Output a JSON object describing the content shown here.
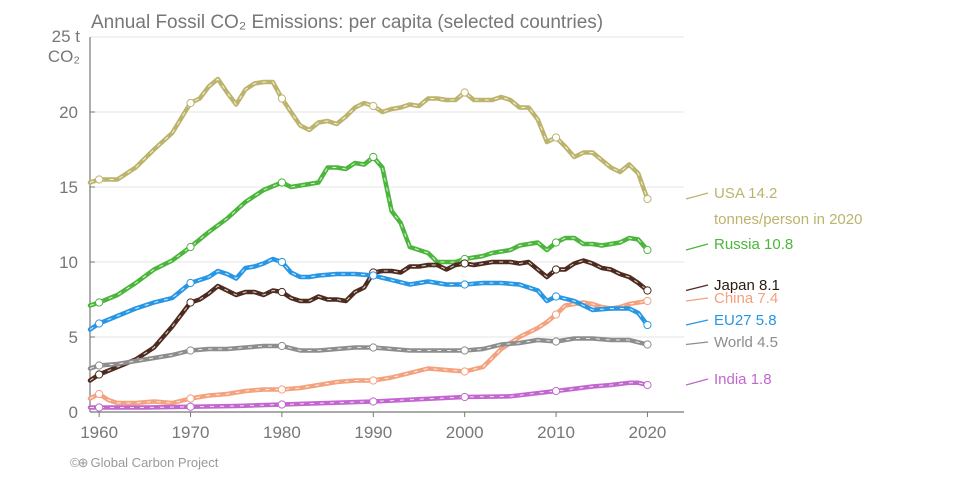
{
  "chart_data": {
    "type": "line",
    "title": "Annual Fossil CO₂ Emissions: per capita (selected countries)",
    "y_unit_top": "25 t",
    "y_unit_bottom": "CO₂",
    "xlim": [
      1959,
      2024
    ],
    "ylim": [
      0,
      25
    ],
    "x_ticks": [
      1960,
      1970,
      1980,
      1990,
      2000,
      2010,
      2020
    ],
    "y_ticks": [
      0,
      5,
      10,
      15,
      20
    ],
    "grid": true,
    "label_note": "tonnes/person in 2020",
    "series": [
      {
        "name": "USA",
        "label_value": "14.2",
        "color": "#bcb36c",
        "x": [
          1959,
          1960,
          1962,
          1964,
          1966,
          1968,
          1970,
          1971,
          1972,
          1973,
          1974,
          1975,
          1976,
          1977,
          1978,
          1979,
          1980,
          1981,
          1982,
          1983,
          1984,
          1985,
          1986,
          1987,
          1988,
          1989,
          1990,
          1991,
          1992,
          1993,
          1994,
          1995,
          1996,
          1997,
          1998,
          1999,
          2000,
          2001,
          2002,
          2003,
          2004,
          2005,
          2006,
          2007,
          2008,
          2009,
          2010,
          2011,
          2012,
          2013,
          2014,
          2015,
          2016,
          2017,
          2018,
          2019,
          2020
        ],
        "y": [
          15.3,
          15.5,
          15.5,
          16.3,
          17.5,
          18.6,
          20.6,
          20.9,
          21.7,
          22.2,
          21.3,
          20.5,
          21.5,
          21.9,
          22.0,
          22.0,
          20.9,
          20.0,
          19.1,
          18.8,
          19.3,
          19.4,
          19.2,
          19.7,
          20.3,
          20.6,
          20.4,
          20.0,
          20.2,
          20.3,
          20.5,
          20.4,
          20.9,
          20.9,
          20.8,
          20.8,
          21.3,
          20.8,
          20.8,
          20.8,
          21.0,
          20.8,
          20.3,
          20.3,
          19.5,
          18.0,
          18.3,
          17.7,
          17.0,
          17.3,
          17.3,
          16.8,
          16.3,
          16.0,
          16.5,
          15.9,
          14.2
        ]
      },
      {
        "name": "Russia",
        "label_value": "10.8",
        "color": "#4bb53c",
        "x": [
          1959,
          1960,
          1962,
          1964,
          1966,
          1968,
          1970,
          1972,
          1974,
          1976,
          1978,
          1980,
          1981,
          1982,
          1983,
          1984,
          1985,
          1986,
          1987,
          1988,
          1989,
          1990,
          1991,
          1992,
          1993,
          1994,
          1995,
          1996,
          1997,
          1998,
          1999,
          2000,
          2001,
          2002,
          2003,
          2004,
          2005,
          2006,
          2007,
          2008,
          2009,
          2010,
          2011,
          2012,
          2013,
          2014,
          2015,
          2016,
          2017,
          2018,
          2019,
          2020
        ],
        "y": [
          7.1,
          7.3,
          7.8,
          8.6,
          9.5,
          10.1,
          11.0,
          12.0,
          12.9,
          14.0,
          14.8,
          15.3,
          15.0,
          15.1,
          15.2,
          15.3,
          16.3,
          16.3,
          16.2,
          16.6,
          16.5,
          17.0,
          16.3,
          13.4,
          12.6,
          11.0,
          10.8,
          10.6,
          10.0,
          10.0,
          10.0,
          10.2,
          10.3,
          10.4,
          10.6,
          10.7,
          10.8,
          11.1,
          11.2,
          11.3,
          10.8,
          11.3,
          11.6,
          11.6,
          11.2,
          11.2,
          11.1,
          11.2,
          11.3,
          11.6,
          11.5,
          10.8
        ]
      },
      {
        "name": "Japan",
        "label_value": "8.1",
        "color": "#4d2b1f",
        "x": [
          1959,
          1960,
          1962,
          1964,
          1966,
          1968,
          1970,
          1971,
          1972,
          1973,
          1974,
          1975,
          1976,
          1977,
          1978,
          1979,
          1980,
          1981,
          1982,
          1983,
          1984,
          1985,
          1986,
          1987,
          1988,
          1989,
          1990,
          1991,
          1992,
          1993,
          1994,
          1995,
          1996,
          1997,
          1998,
          1999,
          2000,
          2001,
          2002,
          2003,
          2004,
          2005,
          2006,
          2007,
          2008,
          2009,
          2010,
          2011,
          2012,
          2013,
          2014,
          2015,
          2016,
          2017,
          2018,
          2019,
          2020
        ],
        "y": [
          2.1,
          2.5,
          3.0,
          3.5,
          4.3,
          5.7,
          7.3,
          7.5,
          7.9,
          8.4,
          8.1,
          7.8,
          8.0,
          8.0,
          7.8,
          8.1,
          8.0,
          7.6,
          7.4,
          7.4,
          7.7,
          7.5,
          7.5,
          7.4,
          8.0,
          8.3,
          9.3,
          9.4,
          9.4,
          9.3,
          9.7,
          9.7,
          9.8,
          9.8,
          9.5,
          9.8,
          9.9,
          9.8,
          9.9,
          10.0,
          10.0,
          10.0,
          9.9,
          10.0,
          9.5,
          9.0,
          9.5,
          9.5,
          9.9,
          10.1,
          9.9,
          9.6,
          9.5,
          9.2,
          9.0,
          8.6,
          8.1
        ]
      },
      {
        "name": "China",
        "label_value": "7.4",
        "color": "#f4a17d",
        "x": [
          1959,
          1960,
          1961,
          1962,
          1964,
          1966,
          1968,
          1970,
          1972,
          1974,
          1976,
          1978,
          1980,
          1982,
          1984,
          1986,
          1988,
          1990,
          1992,
          1994,
          1996,
          1998,
          2000,
          2002,
          2003,
          2004,
          2005,
          2006,
          2007,
          2008,
          2009,
          2010,
          2011,
          2012,
          2013,
          2014,
          2015,
          2016,
          2017,
          2018,
          2019,
          2020
        ],
        "y": [
          0.9,
          1.2,
          0.8,
          0.6,
          0.6,
          0.7,
          0.6,
          0.9,
          1.1,
          1.2,
          1.4,
          1.5,
          1.5,
          1.6,
          1.8,
          2.0,
          2.1,
          2.1,
          2.3,
          2.6,
          2.9,
          2.8,
          2.7,
          3.0,
          3.6,
          4.2,
          4.6,
          5.0,
          5.3,
          5.6,
          6.0,
          6.5,
          7.1,
          7.2,
          7.3,
          7.2,
          7.0,
          6.9,
          7.0,
          7.2,
          7.3,
          7.4
        ]
      },
      {
        "name": "EU27",
        "label_value": "5.8",
        "color": "#2796e4",
        "x": [
          1959,
          1960,
          1962,
          1964,
          1966,
          1968,
          1970,
          1972,
          1973,
          1974,
          1975,
          1976,
          1977,
          1978,
          1979,
          1980,
          1981,
          1982,
          1983,
          1984,
          1986,
          1988,
          1990,
          1992,
          1994,
          1996,
          1998,
          2000,
          2002,
          2004,
          2006,
          2007,
          2008,
          2009,
          2010,
          2012,
          2014,
          2016,
          2018,
          2019,
          2020
        ],
        "y": [
          5.5,
          5.9,
          6.4,
          6.9,
          7.3,
          7.6,
          8.6,
          9.0,
          9.4,
          9.2,
          8.9,
          9.6,
          9.7,
          9.9,
          10.2,
          10.0,
          9.3,
          9.0,
          9.0,
          9.1,
          9.2,
          9.2,
          9.1,
          8.8,
          8.5,
          8.7,
          8.5,
          8.5,
          8.6,
          8.6,
          8.5,
          8.3,
          8.1,
          7.4,
          7.7,
          7.4,
          6.8,
          6.9,
          6.9,
          6.6,
          5.8
        ]
      },
      {
        "name": "World",
        "label_value": "4.5",
        "color": "#8d8d8d",
        "x": [
          1959,
          1960,
          1962,
          1964,
          1966,
          1968,
          1970,
          1972,
          1974,
          1976,
          1978,
          1980,
          1982,
          1984,
          1986,
          1988,
          1990,
          1992,
          1994,
          1996,
          1998,
          2000,
          2002,
          2004,
          2006,
          2008,
          2010,
          2012,
          2014,
          2016,
          2018,
          2020
        ],
        "y": [
          2.9,
          3.1,
          3.2,
          3.4,
          3.6,
          3.8,
          4.1,
          4.2,
          4.2,
          4.3,
          4.4,
          4.4,
          4.1,
          4.1,
          4.2,
          4.3,
          4.3,
          4.2,
          4.1,
          4.1,
          4.1,
          4.1,
          4.2,
          4.5,
          4.6,
          4.8,
          4.7,
          4.9,
          4.9,
          4.8,
          4.8,
          4.5
        ]
      },
      {
        "name": "India",
        "label_value": "1.8",
        "color": "#c267cf",
        "x": [
          1959,
          1960,
          1965,
          1970,
          1975,
          1980,
          1985,
          1990,
          1995,
          2000,
          2005,
          2010,
          2014,
          2016,
          2018,
          2019,
          2020
        ],
        "y": [
          0.3,
          0.3,
          0.3,
          0.35,
          0.4,
          0.5,
          0.6,
          0.7,
          0.85,
          1.0,
          1.05,
          1.4,
          1.7,
          1.8,
          1.95,
          1.95,
          1.8
        ]
      }
    ]
  },
  "footer": {
    "cc_text": "©⊕",
    "source": "Global Carbon Project"
  }
}
